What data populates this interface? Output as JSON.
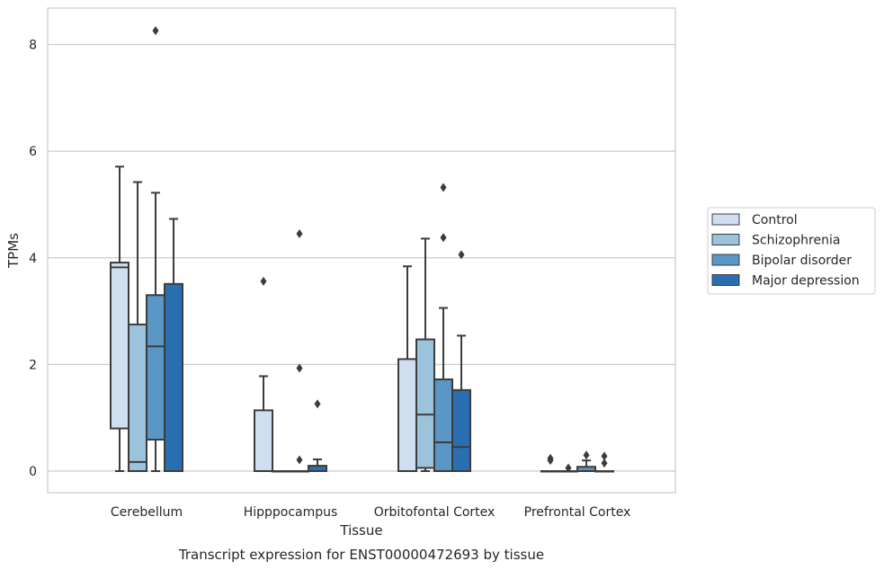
{
  "chart_data": {
    "type": "box",
    "title": "",
    "caption": "Transcript expression for ENST00000472693 by tissue",
    "xlabel": "Tissue",
    "ylabel": "TPMs",
    "ylim": [
      -0.4,
      8.65
    ],
    "yticks": [
      0,
      2,
      4,
      6,
      8
    ],
    "grid": "horizontal",
    "legend_position": "right",
    "categories": [
      "Cerebellum",
      "Hipppocampus",
      "Orbitofontal Cortex",
      "Prefrontal Cortex"
    ],
    "series": [
      {
        "name": "Control",
        "color": "#cfdff0",
        "boxes": [
          {
            "whislo": 0,
            "q1": 0.8,
            "med": 3.82,
            "q3": 3.91,
            "whishi": 5.71,
            "fliers": []
          },
          {
            "whislo": 0,
            "q1": 0,
            "med": 0,
            "q3": 1.14,
            "whishi": 1.78,
            "fliers": [
              3.56
            ]
          },
          {
            "whislo": 0,
            "q1": 0,
            "med": 0,
            "q3": 2.1,
            "whishi": 3.84,
            "fliers": []
          },
          {
            "whislo": 0,
            "q1": 0,
            "med": 0,
            "q3": 0,
            "whishi": 0,
            "fliers": [
              0.2,
              0.24
            ]
          }
        ]
      },
      {
        "name": "Schizophrenia",
        "color": "#9cc3dc",
        "boxes": [
          {
            "whislo": 0,
            "q1": 0,
            "med": 0.17,
            "q3": 2.75,
            "whishi": 5.42,
            "fliers": []
          },
          {
            "whislo": 0,
            "q1": 0,
            "med": 0,
            "q3": 0,
            "whishi": 0,
            "fliers": []
          },
          {
            "whislo": 0,
            "q1": 0.06,
            "med": 1.06,
            "q3": 2.47,
            "whishi": 4.36,
            "fliers": []
          },
          {
            "whislo": 0,
            "q1": 0,
            "med": 0,
            "q3": 0,
            "whishi": 0,
            "fliers": [
              0.06
            ]
          }
        ]
      },
      {
        "name": "Bipolar disorder",
        "color": "#5a97c6",
        "boxes": [
          {
            "whislo": 0,
            "q1": 0.59,
            "med": 2.34,
            "q3": 3.3,
            "whishi": 5.22,
            "fliers": [
              8.26
            ]
          },
          {
            "whislo": 0,
            "q1": 0,
            "med": 0,
            "q3": 0,
            "whishi": 0,
            "fliers": [
              4.45,
              1.93,
              0.21
            ]
          },
          {
            "whislo": 0,
            "q1": 0,
            "med": 0.54,
            "q3": 1.72,
            "whishi": 3.06,
            "fliers": [
              5.32,
              4.38
            ]
          },
          {
            "whislo": 0,
            "q1": 0,
            "med": 0,
            "q3": 0.08,
            "whishi": 0.2,
            "fliers": [
              0.3
            ]
          }
        ]
      },
      {
        "name": "Major depression",
        "color": "#2a6eb2",
        "boxes": [
          {
            "whislo": 0,
            "q1": 0,
            "med": 0,
            "q3": 3.51,
            "whishi": 4.73,
            "fliers": []
          },
          {
            "whislo": 0,
            "q1": 0,
            "med": 0,
            "q3": 0.1,
            "whishi": 0.22,
            "fliers": [
              1.26
            ]
          },
          {
            "whislo": 0,
            "q1": 0,
            "med": 0.45,
            "q3": 1.52,
            "whishi": 2.54,
            "fliers": [
              4.06
            ]
          },
          {
            "whislo": 0,
            "q1": 0,
            "med": 0,
            "q3": 0,
            "whishi": 0,
            "fliers": [
              0.28,
              0.15
            ]
          }
        ]
      }
    ]
  }
}
